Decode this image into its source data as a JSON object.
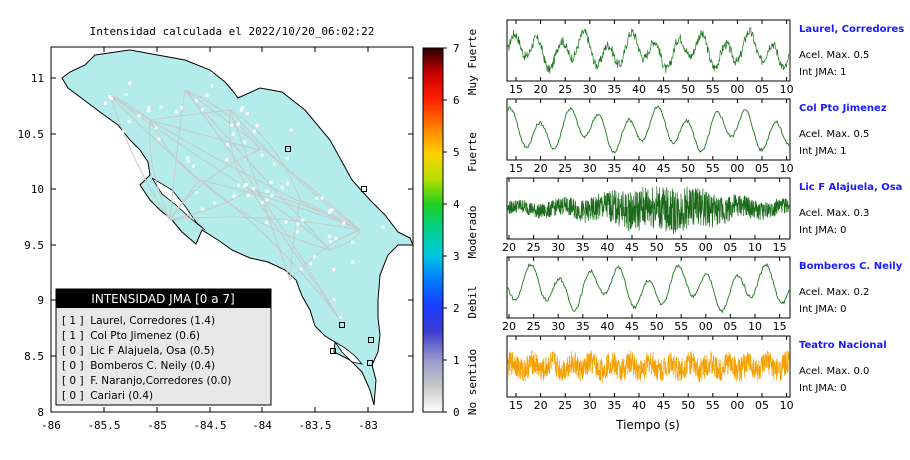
{
  "map": {
    "title": "Intensidad calculada el 2022/10/20_06:02:22",
    "x_ticks": [
      "-86",
      "-85.5",
      "-85",
      "-84.5",
      "-84",
      "-83.5",
      "-83"
    ],
    "y_ticks": [
      "11",
      "10.5",
      "10",
      "9.5",
      "9",
      "8.5",
      "8"
    ],
    "land_color": "#b4ecec",
    "legend": {
      "title": "INTENSIDAD JMA [0 a 7]",
      "entries": [
        "[ 1 ]  Laurel, Corredores (1.4)",
        "[ 1 ]  Col Pto Jimenez (0.6)",
        "[ 0 ]  Lic F Alajuela, Osa (0.5)",
        "[ 0 ]  Bomberos C. Neily (0.4)",
        "[ 0 ]  F. Naranjo,Corredores (0.0)",
        "[ 0 ]  Cariari (0.4)"
      ]
    }
  },
  "colorbar": {
    "ticks": [
      "7",
      "6",
      "5",
      "4",
      "3",
      "2",
      "1",
      "0"
    ],
    "labels": [
      "Muy Fuerte",
      "Fuerte",
      "Moderado",
      "Debil",
      "No sentido"
    ]
  },
  "stations": [
    {
      "name": "Laurel, Corredores",
      "accel": "Acel. Max. 0.5",
      "jma": "Int JMA: 1",
      "x_ticks": [
        "15",
        "20",
        "25",
        "30",
        "35",
        "40",
        "45",
        "50",
        "55",
        "00",
        "05",
        "10"
      ],
      "color": "#1a7a1a",
      "kind": "mixed"
    },
    {
      "name": "Col Pto Jimenez",
      "accel": "Acel. Max. 0.5",
      "jma": "Int JMA: 1",
      "x_ticks": [
        "15",
        "20",
        "25",
        "30",
        "35",
        "40",
        "45",
        "50",
        "55",
        "00",
        "05",
        "10"
      ],
      "color": "#1a7a1a",
      "kind": "smooth"
    },
    {
      "name": "Lic F Alajuela, Osa",
      "accel": "Acel. Max. 0.3",
      "jma": "Int JMA: 0",
      "x_ticks": [
        "20",
        "25",
        "30",
        "35",
        "40",
        "45",
        "50",
        "55",
        "00",
        "05",
        "10",
        "15"
      ],
      "color": "#1a6a1a",
      "kind": "noisy"
    },
    {
      "name": "Bomberos C. Neily",
      "accel": "Acel. Max. 0.2",
      "jma": "Int JMA: 0",
      "x_ticks": [
        "20",
        "25",
        "30",
        "35",
        "40",
        "45",
        "50",
        "55",
        "00",
        "05",
        "10",
        "15"
      ],
      "color": "#1a7a1a",
      "kind": "smooth"
    },
    {
      "name": "Teatro Nacional",
      "accel": "Acel. Max. 0.0",
      "jma": "Int JMA: 0",
      "x_ticks": [
        "15",
        "20",
        "25",
        "30",
        "35",
        "40",
        "45",
        "50",
        "55",
        "00",
        "05",
        "10"
      ],
      "color": "#f5a000",
      "kind": "orange"
    }
  ],
  "time_axis_label": "Tiempo (s)",
  "chart_data": {
    "type": "line",
    "title": "Intensidad calculada el 2022/10/20_06:02:22",
    "xlabel": "Tiempo (s)",
    "series": [
      {
        "name": "Laurel, Corredores",
        "values": []
      },
      {
        "name": "Col Pto Jimenez",
        "values": []
      },
      {
        "name": "Lic F Alajuela, Osa",
        "values": []
      },
      {
        "name": "Bomberos C. Neily",
        "values": []
      },
      {
        "name": "Teatro Nacional",
        "values": []
      }
    ]
  }
}
